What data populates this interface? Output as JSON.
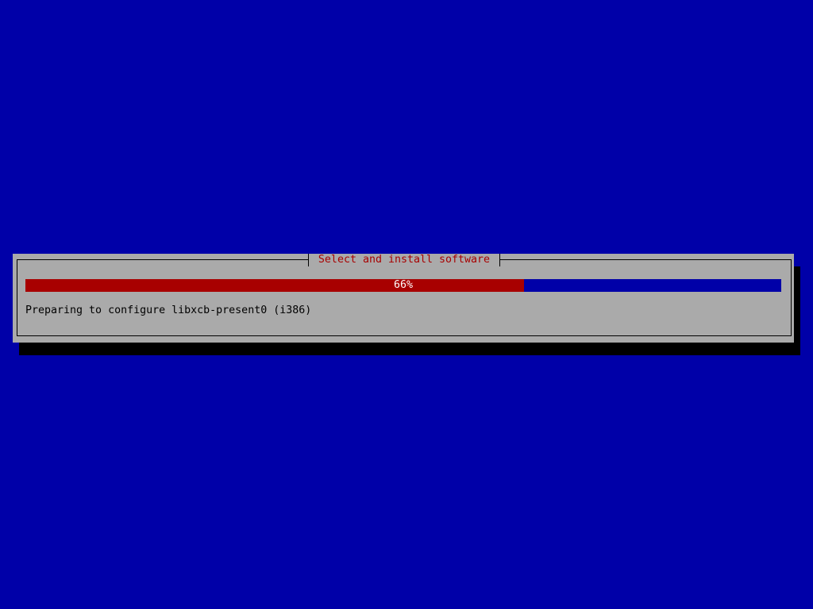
{
  "dialog": {
    "title": "Select and install software",
    "progress": {
      "percent": 66,
      "label": "66%"
    },
    "status_text": "Preparing to configure libxcb-present0 (i386)"
  },
  "colors": {
    "background": "#0000a8",
    "dialog": "#aaaaaa",
    "progress_fill": "#a80000",
    "title": "#a80000"
  }
}
